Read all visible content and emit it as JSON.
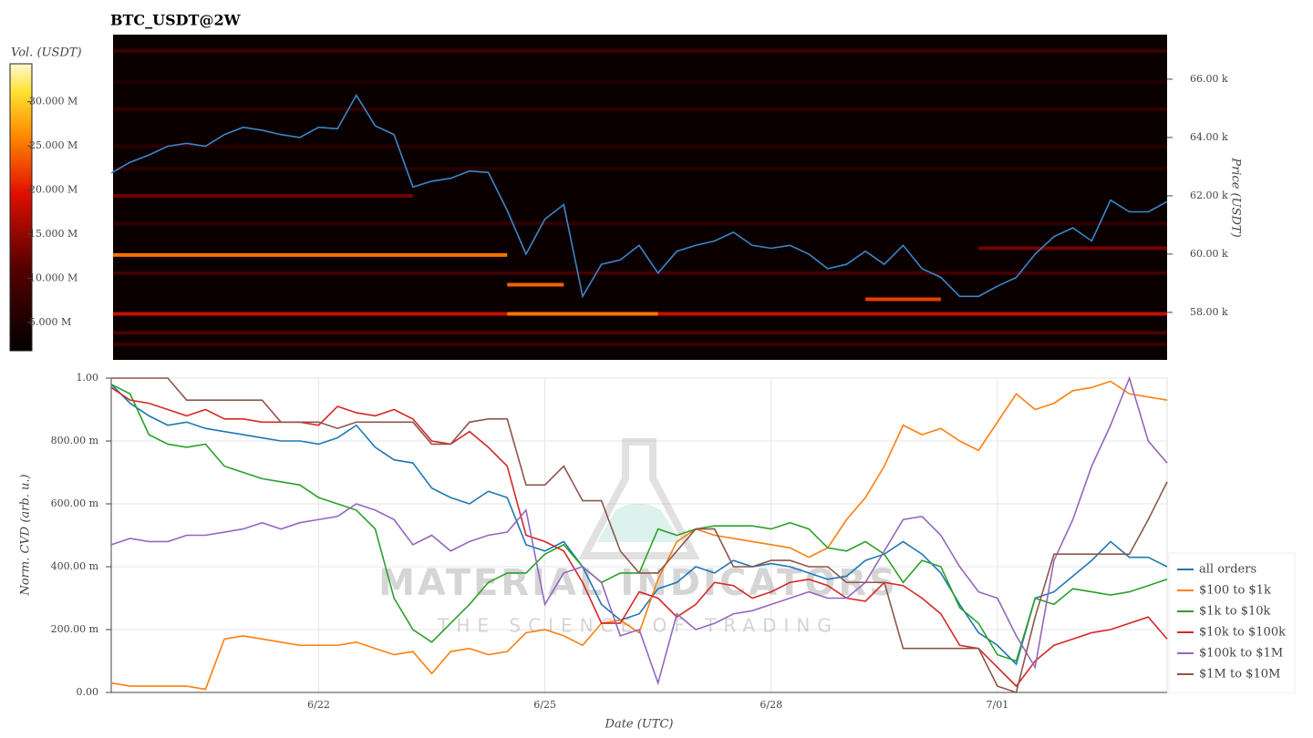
{
  "chart_data": [
    {
      "type": "heatmap",
      "title": "BTC_USDT@2W",
      "ylabel": "Price (USDT)",
      "ylim": [
        56370,
        67530
      ],
      "yticks": [
        {
          "value": 58000,
          "label": "58.00 k"
        },
        {
          "value": 60000,
          "label": "60.00 k"
        },
        {
          "value": 62000,
          "label": "62.00 k"
        },
        {
          "value": 64000,
          "label": "64.00 k"
        },
        {
          "value": 66000,
          "label": "66.00 k"
        }
      ],
      "colorbar": {
        "label": "Vol. (USDT)",
        "lim": [
          1800000,
          34300000
        ],
        "ticks": [
          {
            "value": 5000000,
            "label": "5.000 M"
          },
          {
            "value": 10000000,
            "label": "10.000 M"
          },
          {
            "value": 15000000,
            "label": "15.000 M"
          },
          {
            "value": 20000000,
            "label": "20.000 M"
          },
          {
            "value": 25000000,
            "label": "25.000 M"
          },
          {
            "value": 30000000,
            "label": "30.000 M"
          }
        ]
      },
      "price": {
        "color": "#3a86c8",
        "values": [
          62780,
          63150,
          63400,
          63700,
          63800,
          63700,
          64100,
          64350,
          64250,
          64100,
          64000,
          64350,
          64300,
          65450,
          64400,
          64100,
          62300,
          62500,
          62600,
          62850,
          62800,
          61500,
          60000,
          61200,
          61700,
          58550,
          59650,
          59800,
          60300,
          59350,
          60100,
          60300,
          60450,
          60750,
          60300,
          60200,
          60300,
          60000,
          59500,
          59650,
          60100,
          59650,
          60300,
          59500,
          59200,
          58550,
          58550,
          58900,
          59200,
          60000,
          60600,
          60900,
          60450,
          61850,
          61450,
          61450,
          61800
        ]
      },
      "bands": [
        {
          "price": 66970,
          "start": 0,
          "end": 56,
          "volume": 8000000
        },
        {
          "price": 65900,
          "start": 0,
          "end": 56,
          "volume": 5000000
        },
        {
          "price": 64970,
          "start": 0,
          "end": 56,
          "volume": 7000000
        },
        {
          "price": 63700,
          "start": 0,
          "end": 56,
          "volume": 6000000
        },
        {
          "price": 62930,
          "start": 0,
          "end": 56,
          "volume": 6000000
        },
        {
          "price": 62000,
          "start": 0,
          "end": 16,
          "volume": 13000000
        },
        {
          "price": 61050,
          "start": 0,
          "end": 56,
          "volume": 7000000
        },
        {
          "price": 60200,
          "start": 46,
          "end": 56,
          "volume": 13000000
        },
        {
          "price": 59970,
          "start": 0,
          "end": 21,
          "volume": 25000000
        },
        {
          "price": 59350,
          "start": 0,
          "end": 56,
          "volume": 9000000
        },
        {
          "price": 58950,
          "start": 21,
          "end": 24,
          "volume": 24000000
        },
        {
          "price": 58450,
          "start": 40,
          "end": 44,
          "volume": 22000000
        },
        {
          "price": 57950,
          "start": 0,
          "end": 56,
          "volume": 18000000
        },
        {
          "price": 57950,
          "start": 21,
          "end": 29,
          "volume": 25000000
        },
        {
          "price": 57300,
          "start": 0,
          "end": 56,
          "volume": 10000000
        },
        {
          "price": 56900,
          "start": 0,
          "end": 56,
          "volume": 8000000
        }
      ]
    },
    {
      "type": "line",
      "xlabel": "Date (UTC)",
      "ylabel": "Norm. CVD (arb. u.)",
      "grid": true,
      "legend": "right",
      "categories": [
        null,
        null,
        null,
        null,
        null,
        null,
        null,
        null,
        null,
        null,
        null,
        "6/22",
        null,
        null,
        null,
        null,
        null,
        null,
        null,
        null,
        null,
        null,
        null,
        "6/25",
        null,
        null,
        null,
        null,
        null,
        null,
        null,
        null,
        null,
        null,
        null,
        "6/28",
        null,
        null,
        null,
        null,
        null,
        null,
        null,
        null,
        null,
        null,
        null,
        "7/01",
        null,
        null,
        null,
        null,
        null,
        null,
        null,
        null,
        null
      ],
      "ylim": [
        0,
        1
      ],
      "yticks": [
        {
          "value": 0,
          "label": "0.00"
        },
        {
          "value": 0.2,
          "label": "200.00 m"
        },
        {
          "value": 0.4,
          "label": "400.00 m"
        },
        {
          "value": 0.6,
          "label": "600.00 m"
        },
        {
          "value": 0.8,
          "label": "800.00 m"
        },
        {
          "value": 1,
          "label": "1.00"
        }
      ],
      "series": [
        {
          "name": "all orders",
          "color": "#1f77b4",
          "values": [
            0.98,
            0.92,
            0.88,
            0.85,
            0.86,
            0.84,
            0.83,
            0.82,
            0.81,
            0.8,
            0.8,
            0.79,
            0.81,
            0.85,
            0.78,
            0.74,
            0.73,
            0.65,
            0.62,
            0.6,
            0.64,
            0.62,
            0.47,
            0.45,
            0.48,
            0.4,
            0.28,
            0.23,
            0.25,
            0.33,
            0.35,
            0.4,
            0.38,
            0.42,
            0.4,
            0.41,
            0.4,
            0.38,
            0.36,
            0.37,
            0.42,
            0.44,
            0.48,
            0.44,
            0.38,
            0.28,
            0.19,
            0.15,
            0.09,
            0.3,
            0.32,
            0.37,
            0.42,
            0.48,
            0.43,
            0.43,
            0.4
          ]
        },
        {
          "name": "$100 to $1k",
          "color": "#ff7f0e",
          "values": [
            0.03,
            0.02,
            0.02,
            0.02,
            0.02,
            0.01,
            0.17,
            0.18,
            0.17,
            0.16,
            0.15,
            0.15,
            0.15,
            0.16,
            0.14,
            0.12,
            0.13,
            0.06,
            0.13,
            0.14,
            0.12,
            0.13,
            0.19,
            0.2,
            0.18,
            0.15,
            0.22,
            0.23,
            0.19,
            0.36,
            0.48,
            0.52,
            0.5,
            0.49,
            0.48,
            0.47,
            0.46,
            0.43,
            0.46,
            0.55,
            0.62,
            0.72,
            0.85,
            0.82,
            0.84,
            0.8,
            0.77,
            0.86,
            0.95,
            0.9,
            0.92,
            0.96,
            0.97,
            0.99,
            0.95,
            0.94,
            0.93
          ]
        },
        {
          "name": "$1k to $10k",
          "color": "#2ca02c",
          "values": [
            0.98,
            0.95,
            0.82,
            0.79,
            0.78,
            0.79,
            0.72,
            0.7,
            0.68,
            0.67,
            0.66,
            0.62,
            0.6,
            0.58,
            0.52,
            0.3,
            0.2,
            0.16,
            0.22,
            0.28,
            0.35,
            0.38,
            0.38,
            0.44,
            0.47,
            0.4,
            0.35,
            0.38,
            0.38,
            0.52,
            0.5,
            0.52,
            0.53,
            0.53,
            0.53,
            0.52,
            0.54,
            0.52,
            0.46,
            0.45,
            0.48,
            0.44,
            0.35,
            0.42,
            0.4,
            0.27,
            0.22,
            0.12,
            0.1,
            0.3,
            0.28,
            0.33,
            0.32,
            0.31,
            0.32,
            0.34,
            0.36
          ]
        },
        {
          "name": "$10k to $100k",
          "color": "#d62728",
          "values": [
            0.97,
            0.93,
            0.92,
            0.9,
            0.88,
            0.9,
            0.87,
            0.87,
            0.86,
            0.86,
            0.86,
            0.85,
            0.91,
            0.89,
            0.88,
            0.9,
            0.87,
            0.8,
            0.79,
            0.83,
            0.78,
            0.72,
            0.5,
            0.48,
            0.45,
            0.35,
            0.22,
            0.22,
            0.32,
            0.3,
            0.24,
            0.28,
            0.35,
            0.34,
            0.3,
            0.32,
            0.35,
            0.36,
            0.34,
            0.3,
            0.29,
            0.35,
            0.34,
            0.3,
            0.25,
            0.15,
            0.14,
            0.08,
            0.02,
            0.1,
            0.15,
            0.17,
            0.19,
            0.2,
            0.22,
            0.24,
            0.17
          ]
        },
        {
          "name": "$100k to $1M",
          "color": "#9467bd",
          "values": [
            0.47,
            0.49,
            0.48,
            0.48,
            0.5,
            0.5,
            0.51,
            0.52,
            0.54,
            0.52,
            0.54,
            0.55,
            0.56,
            0.6,
            0.58,
            0.55,
            0.47,
            0.5,
            0.45,
            0.48,
            0.5,
            0.51,
            0.58,
            0.28,
            0.38,
            0.4,
            0.35,
            0.18,
            0.2,
            0.03,
            0.25,
            0.2,
            0.22,
            0.25,
            0.26,
            0.28,
            0.3,
            0.32,
            0.3,
            0.3,
            0.35,
            0.45,
            0.55,
            0.56,
            0.5,
            0.4,
            0.32,
            0.3,
            0.18,
            0.08,
            0.42,
            0.55,
            0.72,
            0.85,
            1.0,
            0.8,
            0.73
          ]
        },
        {
          "name": "$1M to $10M",
          "color": "#8c564b",
          "values": [
            1.0,
            1.0,
            1.0,
            1.0,
            0.93,
            0.93,
            0.93,
            0.93,
            0.93,
            0.86,
            0.86,
            0.86,
            0.84,
            0.86,
            0.86,
            0.86,
            0.86,
            0.79,
            0.79,
            0.86,
            0.87,
            0.87,
            0.66,
            0.66,
            0.72,
            0.61,
            0.61,
            0.45,
            0.38,
            0.38,
            0.45,
            0.52,
            0.52,
            0.4,
            0.4,
            0.42,
            0.42,
            0.4,
            0.4,
            0.35,
            0.35,
            0.35,
            0.14,
            0.14,
            0.14,
            0.14,
            0.14,
            0.02,
            0.0,
            0.24,
            0.44,
            0.44,
            0.44,
            0.44,
            0.44,
            0.55,
            0.67
          ]
        }
      ]
    }
  ],
  "watermark": {
    "title": "MATERIAL INDICATORS",
    "subtitle": "THE SCIENCE OF TRADING"
  }
}
